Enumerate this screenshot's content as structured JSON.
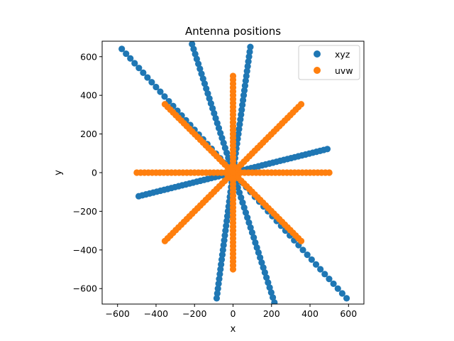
{
  "chart_data": {
    "type": "scatter",
    "title": "Antenna positions",
    "xlabel": "x",
    "ylabel": "y",
    "xlim": [
      -680,
      680
    ],
    "ylim": [
      -680,
      680
    ],
    "xticks": [
      -600,
      -400,
      -200,
      0,
      200,
      400,
      600
    ],
    "yticks": [
      -600,
      -400,
      -200,
      0,
      200,
      400,
      600
    ],
    "xtick_labels": [
      "−600",
      "−400",
      "−200",
      "0",
      "200",
      "400",
      "600"
    ],
    "ytick_labels": [
      "−600",
      "−400",
      "−200",
      "0",
      "200",
      "400",
      "600"
    ],
    "grid": false,
    "legend_position": "top-right",
    "colors": {
      "xyz": "#1f77b4",
      "uvw": "#ff7f0e"
    },
    "series": [
      {
        "name": "xyz",
        "color": "#1f77b4",
        "arms": [
          {
            "end": [
              490,
              122
            ],
            "points": 27
          },
          {
            "end": [
              -490,
              -122
            ],
            "points": 27
          },
          {
            "end": [
              590,
              -650
            ],
            "points": 27
          },
          {
            "end": [
              -578,
              640
            ],
            "points": 27
          },
          {
            "end": [
              215,
              -672
            ],
            "points": 27
          },
          {
            "end": [
              -213,
              665
            ],
            "points": 27
          },
          {
            "end": [
              90,
              650
            ],
            "points": 27
          },
          {
            "end": [
              -85,
              -650
            ],
            "points": 27
          }
        ]
      },
      {
        "name": "uvw",
        "color": "#ff7f0e",
        "arms": [
          {
            "end": [
              500,
              0
            ],
            "points": 26
          },
          {
            "end": [
              -500,
              0
            ],
            "points": 26
          },
          {
            "end": [
              0,
              500
            ],
            "points": 26
          },
          {
            "end": [
              0,
              -500
            ],
            "points": 26
          },
          {
            "end": [
              354,
              354
            ],
            "points": 26
          },
          {
            "end": [
              -354,
              -354
            ],
            "points": 26
          },
          {
            "end": [
              354,
              -354
            ],
            "points": 26
          },
          {
            "end": [
              -354,
              354
            ],
            "points": 26
          }
        ]
      }
    ]
  }
}
